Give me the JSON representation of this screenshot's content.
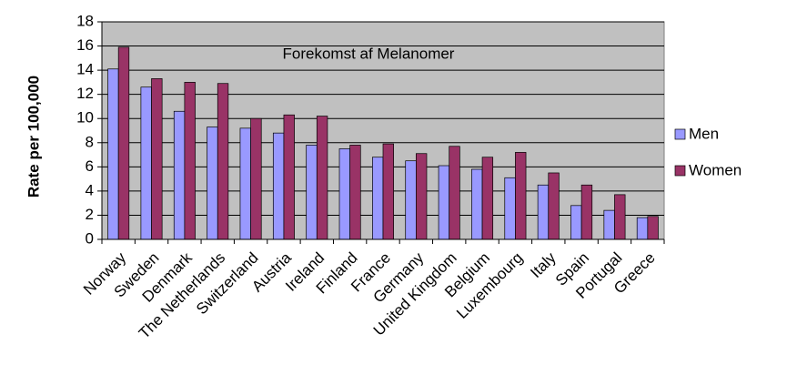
{
  "chart_data": {
    "type": "bar",
    "title": "Forekomst af Melanomer",
    "y_label": "Rate per 100,000",
    "categories": [
      "Norway",
      "Sweden",
      "Denmark",
      "The Netherlands",
      "Switzerland",
      "Austria",
      "Ireland",
      "Finland",
      "France",
      "Germany",
      "United Kingdom",
      "Belgium",
      "Luxembourg",
      "Italy",
      "Spain",
      "Portugal",
      "Greece"
    ],
    "series": [
      {
        "name": "Men",
        "color": "#9999ff",
        "values": [
          14.1,
          12.6,
          10.6,
          9.3,
          9.2,
          8.8,
          7.8,
          7.5,
          6.8,
          6.5,
          6.1,
          5.8,
          5.1,
          4.5,
          2.8,
          2.4,
          1.8
        ]
      },
      {
        "name": "Women",
        "color": "#993366",
        "values": [
          15.9,
          13.3,
          13.0,
          12.9,
          10.0,
          10.3,
          10.2,
          7.8,
          7.9,
          7.1,
          7.7,
          6.8,
          7.2,
          5.5,
          4.5,
          3.7,
          1.9
        ]
      }
    ],
    "ylim": [
      0,
      18
    ],
    "yticks": [
      0,
      2,
      4,
      6,
      8,
      10,
      12,
      14,
      16,
      18
    ],
    "grid": true,
    "legend": "right",
    "plot_background": "#c0c0c0"
  }
}
